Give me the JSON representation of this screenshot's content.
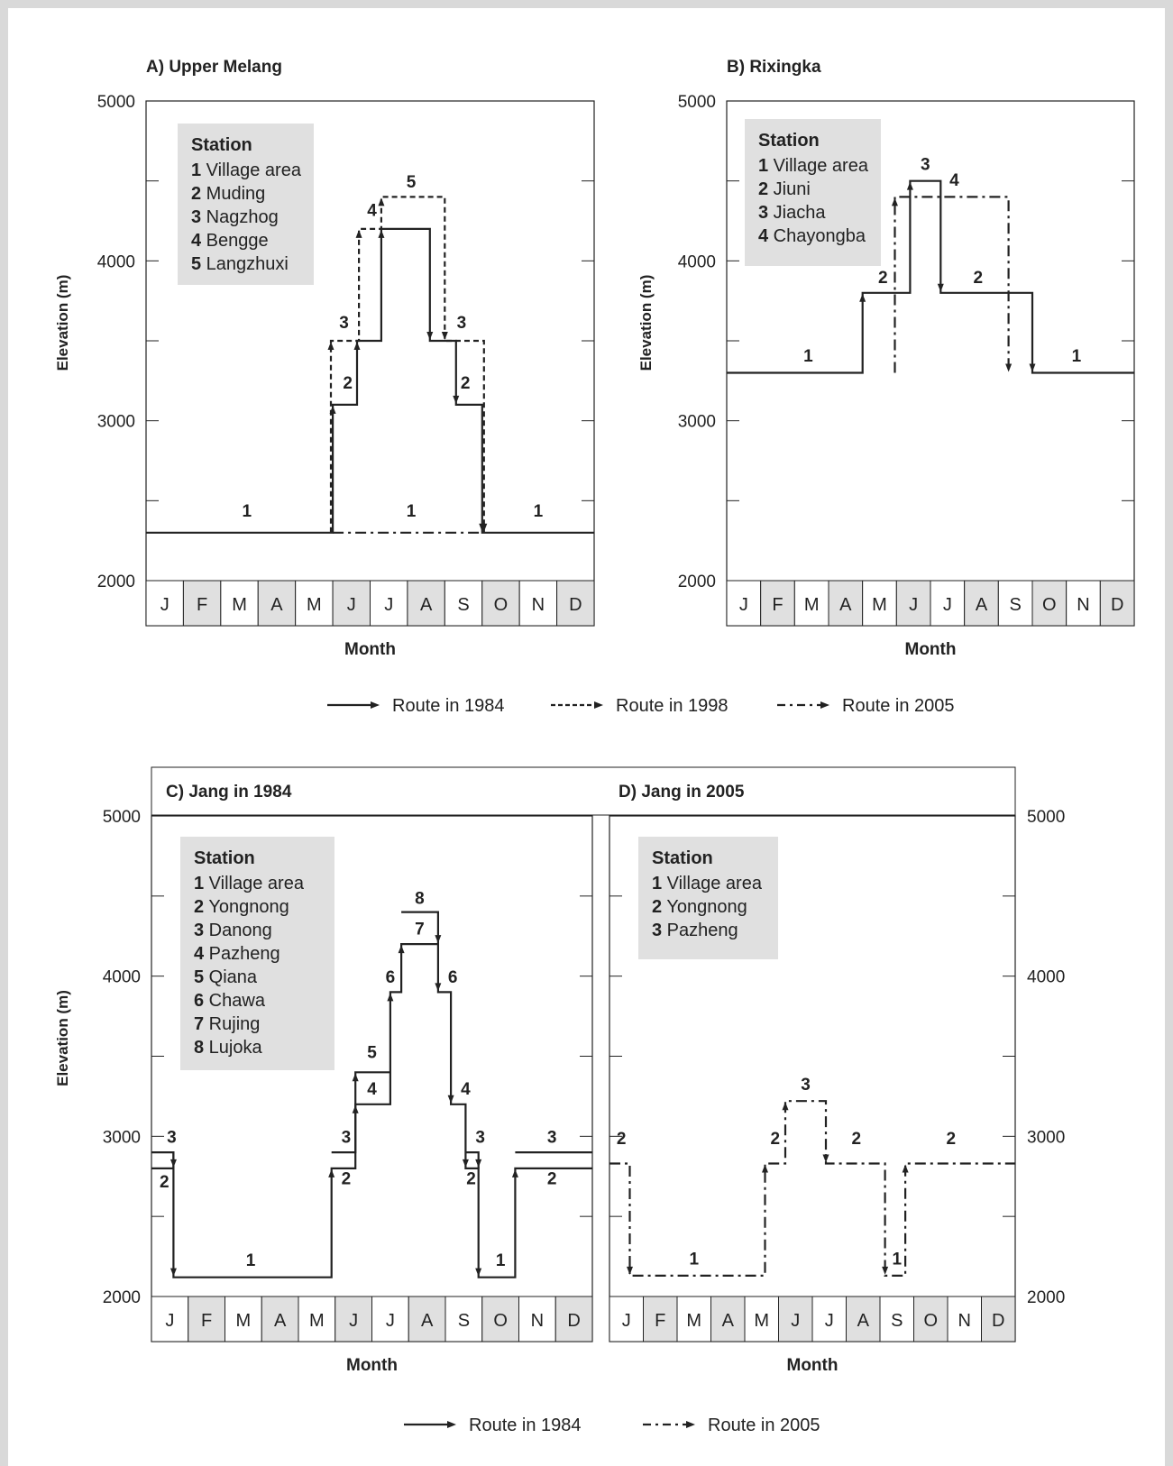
{
  "months": [
    "J",
    "F",
    "M",
    "A",
    "M",
    "J",
    "J",
    "A",
    "S",
    "O",
    "N",
    "D"
  ],
  "legend_top": [
    "Route in 1984",
    "Route in 1998",
    "Route in 2005"
  ],
  "legend_bottom": [
    "Route in 1984",
    "Route in 2005"
  ],
  "colors": {
    "line": "#222222",
    "shade": "#e0e0e0"
  },
  "chart_data": [
    {
      "id": "A",
      "type": "line",
      "title": "A) Upper Melang",
      "xlabel": "Month",
      "ylabel": "Elevation (m)",
      "ylim": [
        2000,
        5000
      ],
      "yticks": [
        2000,
        3000,
        4000,
        5000
      ],
      "station_header": "Station",
      "stations": [
        {
          "num": "1",
          "name": "Village area"
        },
        {
          "num": "2",
          "name": "Muding"
        },
        {
          "num": "3",
          "name": "Nagzhog"
        },
        {
          "num": "4",
          "name": "Bengge"
        },
        {
          "num": "5",
          "name": "Langzhuxi"
        }
      ],
      "series": [
        {
          "name": "Route in 1984",
          "style": "solid",
          "points": [
            [
              0,
              2300
            ],
            [
              5,
              2300
            ],
            [
              5,
              3100
            ],
            [
              5.65,
              3100
            ],
            [
              5.65,
              3500
            ],
            [
              6.3,
              3500
            ],
            [
              6.3,
              4200
            ],
            [
              7.6,
              4200
            ],
            [
              7.6,
              3500
            ],
            [
              8.3,
              3500
            ],
            [
              8.3,
              3100
            ],
            [
              9,
              3100
            ],
            [
              9,
              2300
            ],
            [
              12,
              2300
            ]
          ]
        },
        {
          "name": "Route in 1998",
          "style": "dashed",
          "points": [
            [
              4.95,
              2300
            ],
            [
              4.95,
              3500
            ],
            [
              5.7,
              3500
            ],
            [
              5.7,
              4200
            ],
            [
              6.3,
              4200
            ],
            [
              6.3,
              4400
            ],
            [
              8,
              4400
            ],
            [
              8,
              3500
            ],
            [
              9.05,
              3500
            ],
            [
              9.05,
              2300
            ]
          ]
        },
        {
          "name": "Route in 2005",
          "style": "dashdot",
          "points": [
            [
              5,
              2300
            ],
            [
              9,
              2300
            ]
          ]
        }
      ],
      "labels": [
        {
          "text": "1",
          "x": 2.7,
          "y": 2400
        },
        {
          "text": "1",
          "x": 7.1,
          "y": 2400
        },
        {
          "text": "1",
          "x": 10.5,
          "y": 2400
        },
        {
          "text": "2",
          "x": 5.4,
          "y": 3200
        },
        {
          "text": "3",
          "x": 5.3,
          "y": 3580
        },
        {
          "text": "4",
          "x": 6.05,
          "y": 4280
        },
        {
          "text": "5",
          "x": 7.1,
          "y": 4460
        },
        {
          "text": "3",
          "x": 8.45,
          "y": 3580
        },
        {
          "text": "2",
          "x": 8.55,
          "y": 3200
        }
      ]
    },
    {
      "id": "B",
      "type": "line",
      "title": "B) Rixingka",
      "xlabel": "Month",
      "ylabel": "Elevation (m)",
      "ylim": [
        2000,
        5000
      ],
      "yticks": [
        2000,
        3000,
        4000,
        5000
      ],
      "station_header": "Station",
      "stations": [
        {
          "num": "1",
          "name": "Village area"
        },
        {
          "num": "2",
          "name": "Jiuni"
        },
        {
          "num": "3",
          "name": "Jiacha"
        },
        {
          "num": "4",
          "name": "Chayongba"
        }
      ],
      "series": [
        {
          "name": "Route in 1984",
          "style": "solid",
          "points": [
            [
              0,
              3300
            ],
            [
              4,
              3300
            ],
            [
              4,
              3800
            ],
            [
              5.4,
              3800
            ],
            [
              5.4,
              4500
            ],
            [
              6.3,
              4500
            ],
            [
              6.3,
              3800
            ],
            [
              9,
              3800
            ],
            [
              9,
              3300
            ],
            [
              12,
              3300
            ]
          ]
        },
        {
          "name": "Route in 2005",
          "style": "dashdot",
          "points": [
            [
              4.95,
              3300
            ],
            [
              4.95,
              4400
            ],
            [
              8.3,
              4400
            ],
            [
              8.3,
              3300
            ]
          ]
        }
      ],
      "labels": [
        {
          "text": "1",
          "x": 2.4,
          "y": 3370
        },
        {
          "text": "2",
          "x": 4.6,
          "y": 3860
        },
        {
          "text": "3",
          "x": 5.85,
          "y": 4570
        },
        {
          "text": "4",
          "x": 6.7,
          "y": 4470
        },
        {
          "text": "2",
          "x": 7.4,
          "y": 3860
        },
        {
          "text": "1",
          "x": 10.3,
          "y": 3370
        }
      ]
    },
    {
      "id": "C",
      "type": "line",
      "title": "C) Jang in 1984",
      "xlabel": "Month",
      "ylabel": "Elevation (m)",
      "ylim": [
        2000,
        5000
      ],
      "yticks": [
        2000,
        3000,
        4000,
        5000
      ],
      "station_header": "Station",
      "stations": [
        {
          "num": "1",
          "name": "Village area"
        },
        {
          "num": "2",
          "name": "Yongnong"
        },
        {
          "num": "3",
          "name": "Danong"
        },
        {
          "num": "4",
          "name": "Pazheng"
        },
        {
          "num": "5",
          "name": "Qiana"
        },
        {
          "num": "6",
          "name": "Chawa"
        },
        {
          "num": "7",
          "name": "Rujing"
        },
        {
          "num": "8",
          "name": "Lujoka"
        }
      ],
      "series": [
        {
          "name": "Route in 1984",
          "style": "solid",
          "points": [
            [
              0,
              2900
            ],
            [
              0.6,
              2900
            ],
            [
              0.6,
              2800
            ],
            [
              0,
              2800
            ]
          ]
        },
        {
          "name": "Route in 1984",
          "style": "solid",
          "points": [
            [
              0.6,
              2900
            ],
            [
              0.6,
              2120
            ],
            [
              4.9,
              2120
            ],
            [
              4.9,
              2800
            ],
            [
              5.55,
              2800
            ],
            [
              5.55,
              3200
            ],
            [
              6.5,
              3200
            ],
            [
              6.5,
              3900
            ],
            [
              6.8,
              3900
            ],
            [
              6.8,
              4200
            ],
            [
              7.8,
              4200
            ],
            [
              7.8,
              3900
            ],
            [
              8.15,
              3900
            ],
            [
              8.15,
              3200
            ],
            [
              8.55,
              3200
            ],
            [
              8.55,
              2800
            ],
            [
              8.9,
              2800
            ],
            [
              8.9,
              2120
            ],
            [
              9.9,
              2120
            ],
            [
              9.9,
              2800
            ],
            [
              12,
              2800
            ]
          ]
        },
        {
          "name": "Route in 1984",
          "style": "solid",
          "points": [
            [
              4.9,
              2900
            ],
            [
              5.55,
              2900
            ],
            [
              5.55,
              3400
            ],
            [
              6.5,
              3400
            ]
          ]
        },
        {
          "name": "Route in 1984",
          "style": "solid",
          "points": [
            [
              6.8,
              4400
            ],
            [
              7.8,
              4400
            ],
            [
              7.8,
              4200
            ]
          ]
        },
        {
          "name": "Route in 1984",
          "style": "solid",
          "points": [
            [
              8.55,
              2900
            ],
            [
              8.9,
              2900
            ],
            [
              8.9,
              2800
            ]
          ]
        },
        {
          "name": "Route in 1984",
          "style": "solid",
          "points": [
            [
              9.9,
              2900
            ],
            [
              12,
              2900
            ]
          ]
        }
      ],
      "labels": [
        {
          "text": "3",
          "x": 0.55,
          "y": 2960
        },
        {
          "text": "2",
          "x": 0.35,
          "y": 2680
        },
        {
          "text": "1",
          "x": 2.7,
          "y": 2190
        },
        {
          "text": "2",
          "x": 5.3,
          "y": 2700
        },
        {
          "text": "3",
          "x": 5.3,
          "y": 2960
        },
        {
          "text": "4",
          "x": 6.0,
          "y": 3260
        },
        {
          "text": "5",
          "x": 6.0,
          "y": 3490
        },
        {
          "text": "6",
          "x": 6.5,
          "y": 3960
        },
        {
          "text": "7",
          "x": 7.3,
          "y": 4260
        },
        {
          "text": "8",
          "x": 7.3,
          "y": 4450
        },
        {
          "text": "6",
          "x": 8.2,
          "y": 3960
        },
        {
          "text": "4",
          "x": 8.55,
          "y": 3260
        },
        {
          "text": "3",
          "x": 8.95,
          "y": 2960
        },
        {
          "text": "2",
          "x": 8.7,
          "y": 2700
        },
        {
          "text": "1",
          "x": 9.5,
          "y": 2190
        },
        {
          "text": "3",
          "x": 10.9,
          "y": 2960
        },
        {
          "text": "2",
          "x": 10.9,
          "y": 2700
        }
      ]
    },
    {
      "id": "D",
      "type": "line",
      "title": "D) Jang in 2005",
      "xlabel": "Month",
      "ylabel": "",
      "ylim": [
        2000,
        5000
      ],
      "yticks": [
        2000,
        3000,
        4000,
        5000
      ],
      "station_header": "Station",
      "stations": [
        {
          "num": "1",
          "name": "Village area"
        },
        {
          "num": "2",
          "name": "Yongnong"
        },
        {
          "num": "3",
          "name": "Pazheng"
        }
      ],
      "series": [
        {
          "name": "Route in 2005",
          "style": "dashdot",
          "points": [
            [
              0,
              2830
            ],
            [
              0.6,
              2830
            ],
            [
              0.6,
              2130
            ],
            [
              4.6,
              2130
            ],
            [
              4.6,
              2830
            ],
            [
              5.2,
              2830
            ],
            [
              5.2,
              3220
            ],
            [
              6.4,
              3220
            ],
            [
              6.4,
              2830
            ],
            [
              8.15,
              2830
            ],
            [
              8.15,
              2130
            ],
            [
              8.75,
              2130
            ],
            [
              8.75,
              2830
            ],
            [
              12,
              2830
            ]
          ]
        }
      ],
      "labels": [
        {
          "text": "2",
          "x": 0.35,
          "y": 2950
        },
        {
          "text": "1",
          "x": 2.5,
          "y": 2200
        },
        {
          "text": "2",
          "x": 4.9,
          "y": 2950
        },
        {
          "text": "3",
          "x": 5.8,
          "y": 3290
        },
        {
          "text": "2",
          "x": 7.3,
          "y": 2950
        },
        {
          "text": "1",
          "x": 8.5,
          "y": 2200
        },
        {
          "text": "2",
          "x": 10.1,
          "y": 2950
        }
      ]
    }
  ]
}
